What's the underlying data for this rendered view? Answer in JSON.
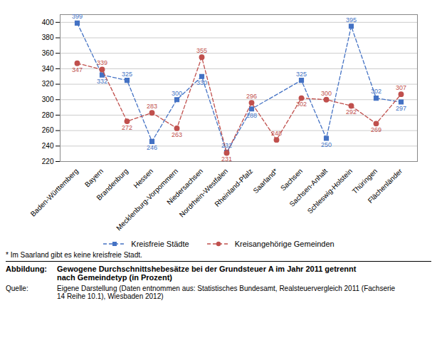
{
  "chart_data": {
    "type": "line",
    "categories": [
      "Baden-Württemberg",
      "Bayern",
      "Brandenburg",
      "Hessen",
      "Mecklenburg-Vorpommern",
      "Niedersachsen",
      "Nordrhein-Westfalen",
      "Rheinland-Pfalz",
      "Saarland*",
      "Sachsen",
      "Sachsen-Anhalt",
      "Schleswig-Holstein",
      "Thüringen",
      "Flächenländer"
    ],
    "series": [
      {
        "name": "Kreisfreie Städte",
        "color": "#4472C4",
        "marker": "square",
        "line_style": "dashed",
        "values": [
          399,
          332,
          325,
          246,
          300,
          330,
          232,
          288,
          null,
          325,
          250,
          395,
          302,
          297
        ]
      },
      {
        "name": "Kreisangehörige Gemeinden",
        "color": "#C0504D",
        "marker": "circle",
        "line_style": "dashed",
        "values": [
          347,
          339,
          272,
          283,
          263,
          355,
          231,
          296,
          248,
          302,
          300,
          292,
          269,
          307
        ]
      }
    ],
    "ylim": [
      220,
      410
    ],
    "yticks": [
      220,
      240,
      260,
      280,
      300,
      320,
      340,
      360,
      380,
      400
    ],
    "grid": true,
    "legend": "bottom",
    "data_labels": true,
    "annotations": [
      "* Im Saarland gibt es keine kreisfreie Stadt.",
      "Abbildung:",
      "Gewogene Durchschnittshebesätze bei der Grundsteuer A im Jahr 2011 getrennt\nnach Gemeindetyp (in Prozent)",
      "Quelle:",
      "Eigene Darstellung (Daten entnommen aus: Statistisches Bundesamt, Realsteuervergleich 2011 (Fachserie\n14 Reihe 10.1), Wiesbaden 2012)"
    ]
  }
}
